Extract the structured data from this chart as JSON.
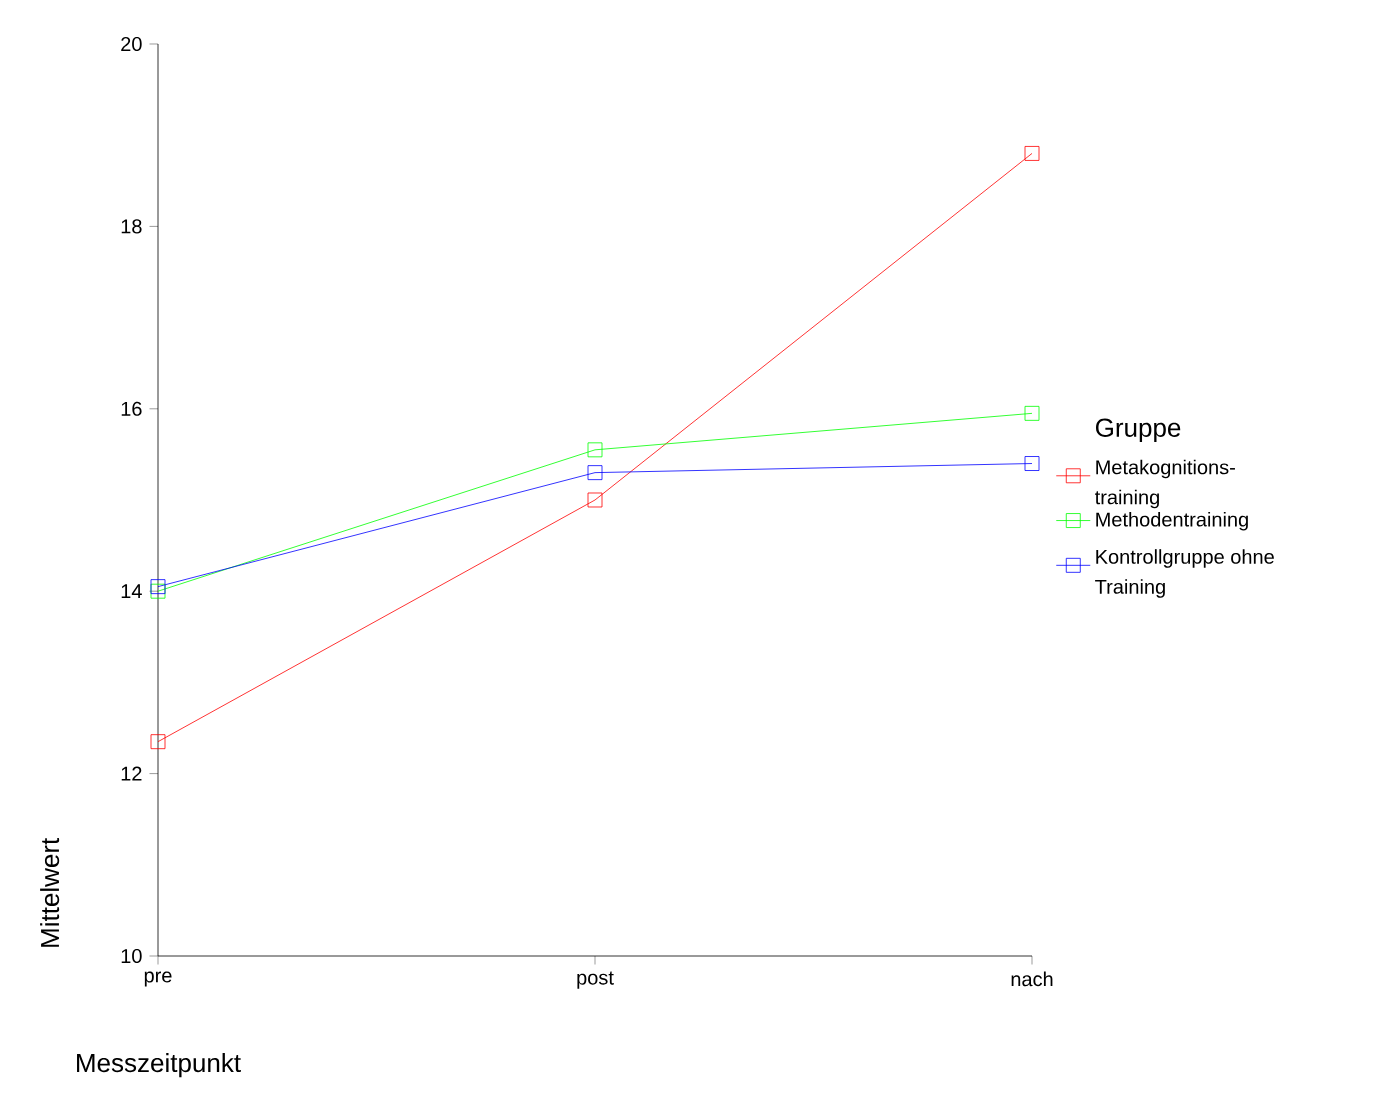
{
  "chart_data": {
    "type": "line",
    "xlabel": "Messzeitpunkt",
    "ylabel": "Mittelwert",
    "legend_title": "Gruppe",
    "categories": [
      "pre",
      "post",
      "nach"
    ],
    "series": [
      {
        "name": "Metakognitions-training",
        "color": "#ff0000",
        "values": [
          12.35,
          15.0,
          18.8
        ]
      },
      {
        "name": "Methodentraining",
        "color": "#00ff00",
        "values": [
          14.0,
          15.55,
          15.95
        ]
      },
      {
        "name": "Kontrollgruppe ohne Training",
        "color": "#0000ff",
        "values": [
          14.05,
          15.3,
          15.4
        ]
      }
    ],
    "ylim": [
      10,
      20
    ],
    "yticks": [
      10,
      12,
      14,
      16,
      18,
      20
    ],
    "grid": false,
    "legend": "right",
    "marker": "square",
    "line_style": "solid"
  }
}
